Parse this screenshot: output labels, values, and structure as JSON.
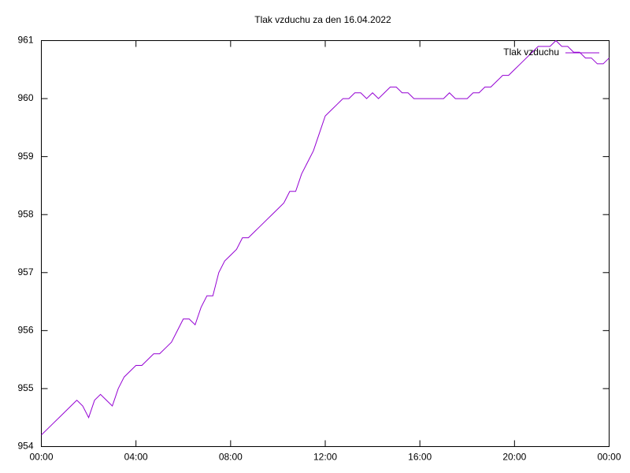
{
  "chart_data": {
    "type": "line",
    "title": "Tlak vzduchu za den 16.04.2022",
    "x": [
      0,
      0.25,
      0.5,
      0.75,
      1,
      1.25,
      1.5,
      1.75,
      2,
      2.25,
      2.5,
      2.75,
      3,
      3.25,
      3.5,
      3.75,
      4,
      4.25,
      4.5,
      4.75,
      5,
      5.25,
      5.5,
      5.75,
      6,
      6.25,
      6.5,
      6.75,
      7,
      7.25,
      7.5,
      7.75,
      8,
      8.25,
      8.5,
      8.75,
      9,
      9.25,
      9.5,
      9.75,
      10,
      10.25,
      10.5,
      10.75,
      11,
      11.25,
      11.5,
      11.75,
      12,
      12.25,
      12.5,
      12.75,
      13,
      13.25,
      13.5,
      13.75,
      14,
      14.25,
      14.5,
      14.75,
      15,
      15.25,
      15.5,
      15.75,
      16,
      16.25,
      16.5,
      16.75,
      17,
      17.25,
      17.5,
      17.75,
      18,
      18.25,
      18.5,
      18.75,
      19,
      19.25,
      19.5,
      19.75,
      20,
      20.25,
      20.5,
      20.75,
      21,
      21.25,
      21.5,
      21.75,
      22,
      22.25,
      22.5,
      22.75,
      23,
      23.25,
      23.5,
      23.75,
      24
    ],
    "series": [
      {
        "name": "Tlak vzduchu",
        "color": "#9400d3",
        "values": [
          954.2,
          954.3,
          954.4,
          954.5,
          954.6,
          954.7,
          954.8,
          954.7,
          954.5,
          954.8,
          954.9,
          954.8,
          954.7,
          955.0,
          955.2,
          955.3,
          955.4,
          955.4,
          955.5,
          955.6,
          955.6,
          955.7,
          955.8,
          956.0,
          956.2,
          956.2,
          956.1,
          956.4,
          956.6,
          956.6,
          957.0,
          957.2,
          957.3,
          957.4,
          957.6,
          957.6,
          957.7,
          957.8,
          957.9,
          958.0,
          958.1,
          958.2,
          958.4,
          958.4,
          958.7,
          958.9,
          959.1,
          959.4,
          959.7,
          959.8,
          959.9,
          960.0,
          960.0,
          960.1,
          960.1,
          960.0,
          960.1,
          960.0,
          960.1,
          960.2,
          960.2,
          960.1,
          960.1,
          960.0,
          960.0,
          960.0,
          960.0,
          960.0,
          960.0,
          960.1,
          960.0,
          960.0,
          960.0,
          960.1,
          960.1,
          960.2,
          960.2,
          960.3,
          960.4,
          960.4,
          960.5,
          960.6,
          960.7,
          960.8,
          960.9,
          960.9,
          960.9,
          961.0,
          960.9,
          960.9,
          960.8,
          960.8,
          960.7,
          960.7,
          960.6,
          960.6,
          960.7
        ]
      }
    ],
    "xlim": [
      0,
      24
    ],
    "xticks": [
      {
        "value": 0,
        "label": "00:00"
      },
      {
        "value": 4,
        "label": "04:00"
      },
      {
        "value": 8,
        "label": "08:00"
      },
      {
        "value": 12,
        "label": "12:00"
      },
      {
        "value": 16,
        "label": "16:00"
      },
      {
        "value": 20,
        "label": "20:00"
      },
      {
        "value": 24,
        "label": "00:00"
      }
    ],
    "ylim": [
      954,
      961
    ],
    "yticks": [
      954,
      955,
      956,
      957,
      958,
      959,
      960,
      961
    ],
    "legend": "top-right",
    "grid": false
  }
}
